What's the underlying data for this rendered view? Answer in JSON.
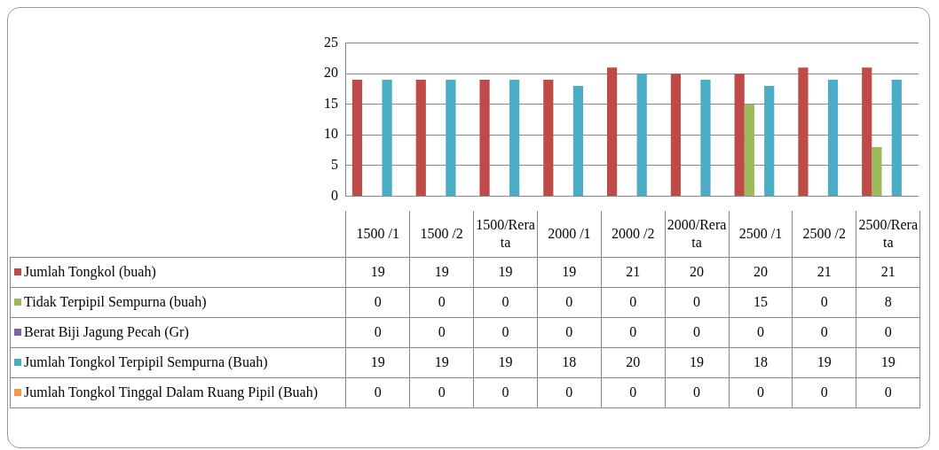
{
  "chart_data": {
    "type": "bar",
    "categories": [
      "1500 /1",
      "1500 /2",
      "1500/Rerata",
      "2000 /1",
      "2000 /2",
      "2000/Rerata",
      "2500 /1",
      "2500 /2",
      "2500/Rerata"
    ],
    "series": [
      {
        "name": "Jumlah Tongkol (buah)",
        "color": "#be4b48",
        "values": [
          19,
          19,
          19,
          19,
          21,
          20,
          20,
          21,
          21
        ]
      },
      {
        "name": "Tidak Terpipil Sempurna (buah)",
        "color": "#9bbb59",
        "values": [
          0,
          0,
          0,
          0,
          0,
          0,
          15,
          0,
          8
        ]
      },
      {
        "name": "Berat Biji Jagung Pecah (Gr)",
        "color": "#8064a2",
        "values": [
          0,
          0,
          0,
          0,
          0,
          0,
          0,
          0,
          0
        ]
      },
      {
        "name": "Jumlah Tongkol Terpipil Sempurna (Buah)",
        "color": "#4bacc6",
        "values": [
          19,
          19,
          19,
          18,
          20,
          19,
          18,
          19,
          19
        ]
      },
      {
        "name": "Jumlah Tongkol Tinggal Dalam Ruang Pipil (Buah)",
        "color": "#f79646",
        "values": [
          0,
          0,
          0,
          0,
          0,
          0,
          0,
          0,
          0
        ]
      }
    ],
    "ylim": [
      0,
      25
    ],
    "yticks": [
      0,
      5,
      10,
      15,
      20,
      25
    ],
    "grid": "y",
    "legend": "left",
    "data_labels": true
  }
}
